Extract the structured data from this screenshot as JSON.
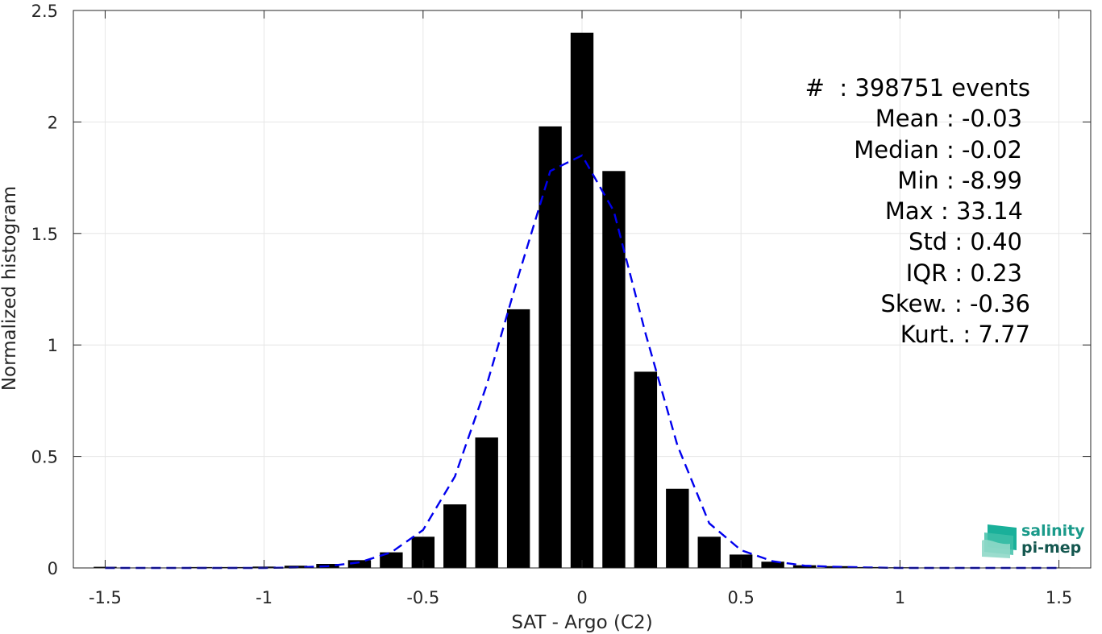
{
  "chart_data": {
    "type": "bar",
    "title": "",
    "xlabel": "SAT - Argo (C2)",
    "ylabel": "Normalized histogram",
    "xlim": [
      -1.6,
      1.6
    ],
    "ylim": [
      0,
      2.5
    ],
    "xticks": [
      -1.5,
      -1,
      -0.5,
      0,
      0.5,
      1,
      1.5
    ],
    "xtick_labels": [
      "-1.5",
      "-1",
      "-0.5",
      "0",
      "0.5",
      "1",
      "1.5"
    ],
    "yticks": [
      0,
      0.5,
      1,
      1.5,
      2,
      2.5
    ],
    "ytick_labels": [
      "0",
      "0.5",
      "1",
      "1.5",
      "2",
      "2.5"
    ],
    "grid": true,
    "bar_color": "#000000",
    "fit_color": "#0000ee",
    "bars": {
      "x": [
        -1.5,
        -1.4,
        -1.3,
        -1.2,
        -1.1,
        -1.0,
        -0.9,
        -0.8,
        -0.7,
        -0.6,
        -0.5,
        -0.4,
        -0.3,
        -0.2,
        -0.1,
        0.0,
        0.1,
        0.2,
        0.3,
        0.4,
        0.5,
        0.6,
        0.7,
        0.8,
        0.9,
        1.0,
        1.1,
        1.2,
        1.3,
        1.4,
        1.5
      ],
      "values": [
        0.005,
        0.002,
        0.002,
        0.004,
        0.004,
        0.006,
        0.01,
        0.018,
        0.035,
        0.07,
        0.14,
        0.285,
        0.585,
        1.16,
        1.98,
        2.4,
        1.78,
        0.88,
        0.355,
        0.14,
        0.06,
        0.028,
        0.012,
        0.008,
        0.004,
        0.003,
        0.002,
        0.002,
        0.002,
        0.002,
        0.002
      ]
    },
    "fit_curve": {
      "style": "dashed",
      "x": [
        -1.5,
        -1.4,
        -1.3,
        -1.2,
        -1.1,
        -1.0,
        -0.9,
        -0.8,
        -0.7,
        -0.6,
        -0.5,
        -0.4,
        -0.3,
        -0.2,
        -0.1,
        0.0,
        0.1,
        0.2,
        0.3,
        0.4,
        0.5,
        0.6,
        0.7,
        0.8,
        0.9,
        1.0,
        1.1,
        1.2,
        1.3,
        1.4,
        1.5
      ],
      "values": [
        0.0,
        0.0,
        0.0,
        0.0,
        0.0,
        0.0,
        0.002,
        0.008,
        0.025,
        0.07,
        0.17,
        0.41,
        0.82,
        1.31,
        1.78,
        1.85,
        1.6,
        1.05,
        0.55,
        0.2,
        0.08,
        0.03,
        0.01,
        0.005,
        0.002,
        0.0,
        0.0,
        0.0,
        0.0,
        0.0,
        0.0
      ]
    }
  },
  "stats": [
    "#  : 398751 events",
    "Mean : -0.03",
    "Median : -0.02",
    "Min : -8.99",
    "Max : 33.14",
    "Std : 0.40",
    "IQR : 0.23",
    "Skew. : -0.36",
    "Kurt. : 7.77"
  ],
  "logo": {
    "line1": "salinity",
    "line2": "pi-mep",
    "colors": [
      "#1ab09a",
      "#7fd0c0",
      "#14574f"
    ]
  }
}
